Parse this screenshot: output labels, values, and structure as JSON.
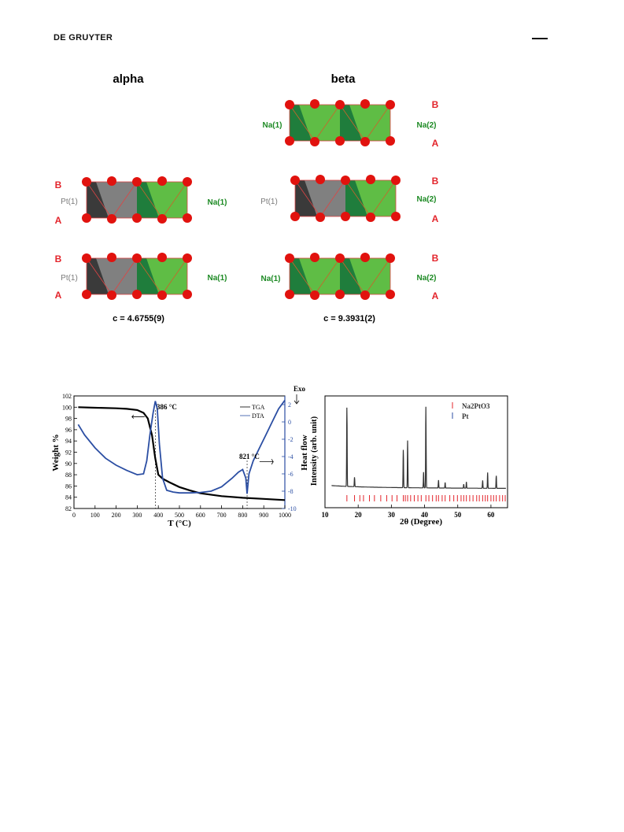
{
  "header": {
    "publisher": "DE GRUYTER"
  },
  "structure_figure": {
    "panel_alpha": {
      "title": "alpha",
      "layer_labels": [
        "B",
        "A"
      ],
      "site_labels": [
        "Pt(1)",
        "Na(1)"
      ],
      "c_label": "c = 4.6755(9)"
    },
    "panel_beta": {
      "title": "beta",
      "layer_labels": [
        "B",
        "A"
      ],
      "site_labels": [
        "Na(1)",
        "Na(2)",
        "Pt(1)"
      ],
      "c_label": "c = 9.3931(2)"
    },
    "colors": {
      "na": "#5fbd45",
      "na_dark": "#1f7d3c",
      "pt": "#808080",
      "pt_dark": "#3a3a3a",
      "atom": "#e1120e",
      "label_red": "#e3242b",
      "label_green": "#1d8a24",
      "label_gray": "#7a7a7a"
    }
  },
  "chart_data": [
    {
      "type": "line",
      "xlabel": "T (°C)",
      "ylabel": "Weight %",
      "y2label": "Heat flow",
      "xlim": [
        0,
        1000
      ],
      "ylim": [
        82,
        102
      ],
      "y2lim": [
        -10,
        3
      ],
      "x_ticks": [
        0,
        100,
        200,
        300,
        400,
        500,
        600,
        700,
        800,
        900,
        1000
      ],
      "y_ticks": [
        82,
        84,
        86,
        88,
        90,
        92,
        94,
        96,
        98,
        100,
        102
      ],
      "y2_ticks": [
        -10,
        -8,
        -6,
        -4,
        -2,
        0,
        2
      ],
      "legend": [
        "TGA",
        "DTA"
      ],
      "legend_position": "top-right",
      "annotations": [
        "386 °C",
        "821 °C",
        "Exo"
      ],
      "series": [
        {
          "name": "TGA",
          "color": "#000000",
          "x": [
            20,
            100,
            200,
            250,
            300,
            330,
            350,
            370,
            385,
            400,
            420,
            450,
            500,
            550,
            600,
            700,
            800,
            900,
            1000
          ],
          "values": [
            100.0,
            99.9,
            99.8,
            99.7,
            99.5,
            99.0,
            98.0,
            95.0,
            91.0,
            88.0,
            87.3,
            86.7,
            85.8,
            85.2,
            84.7,
            84.2,
            83.9,
            83.7,
            83.5
          ]
        },
        {
          "name": "DTA",
          "color": "#2b4ea3",
          "axis": "right",
          "x": [
            20,
            50,
            100,
            150,
            200,
            250,
            300,
            330,
            345,
            360,
            375,
            386,
            395,
            405,
            420,
            440,
            470,
            500,
            550,
            600,
            650,
            700,
            750,
            780,
            800,
            815,
            821,
            830,
            850,
            880,
            910,
            940,
            970,
            1000
          ],
          "values": [
            -0.3,
            -1.5,
            -3.0,
            -4.2,
            -5.0,
            -5.6,
            -6.1,
            -6.0,
            -4.5,
            -1.5,
            1.0,
            2.4,
            1.5,
            -2.5,
            -6.5,
            -7.9,
            -8.1,
            -8.2,
            -8.2,
            -8.15,
            -8.0,
            -7.5,
            -6.5,
            -5.8,
            -5.5,
            -6.5,
            -8.3,
            -6.0,
            -4.5,
            -3.0,
            -1.5,
            0.0,
            1.5,
            2.5
          ]
        }
      ]
    },
    {
      "type": "line",
      "xlabel": "2θ (Degree)",
      "ylabel": "Intensity (arb. unit)",
      "xlim": [
        10,
        65
      ],
      "x_ticks": [
        10,
        20,
        30,
        40,
        50,
        60
      ],
      "legend": [
        "Na2PtO3",
        "Pt"
      ],
      "legend_position": "top-right",
      "peaks": [
        {
          "x": 16.6,
          "intensity": 100
        },
        {
          "x": 18.9,
          "intensity": 12
        },
        {
          "x": 33.6,
          "intensity": 48
        },
        {
          "x": 34.9,
          "intensity": 60
        },
        {
          "x": 39.7,
          "intensity": 20
        },
        {
          "x": 40.4,
          "intensity": 103
        },
        {
          "x": 44.2,
          "intensity": 10
        },
        {
          "x": 46.2,
          "intensity": 7
        },
        {
          "x": 51.8,
          "intensity": 5
        },
        {
          "x": 52.6,
          "intensity": 8
        },
        {
          "x": 57.5,
          "intensity": 10
        },
        {
          "x": 59.0,
          "intensity": 20
        },
        {
          "x": 61.6,
          "intensity": 16
        }
      ],
      "reference_ticks": {
        "name": "Na2PtO3",
        "color": "#e3242b",
        "x": [
          16.6,
          18.9,
          20.5,
          21.6,
          23.4,
          24.9,
          26.8,
          28.6,
          30.2,
          31.7,
          33.6,
          34.2,
          34.9,
          35.8,
          36.9,
          38.0,
          39.0,
          40.4,
          41.3,
          42.4,
          43.5,
          44.2,
          45.3,
          46.2,
          47.6,
          48.8,
          49.9,
          51.0,
          51.8,
          52.6,
          53.6,
          54.6,
          55.7,
          56.5,
          57.5,
          58.3,
          59.0,
          60.0,
          60.8,
          61.6,
          62.6,
          63.5,
          64.3
        ]
      },
      "legend_colors": {
        "Na2PtO3": "#e3242b",
        "Pt": "#2b4ea3"
      }
    }
  ]
}
